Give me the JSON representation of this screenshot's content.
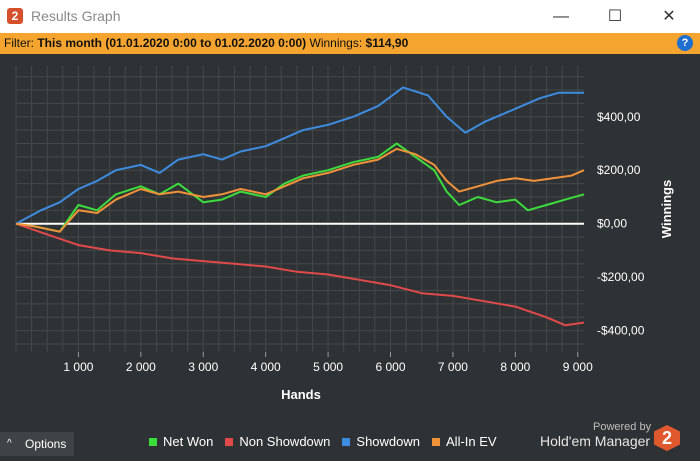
{
  "window": {
    "title": "Results Graph",
    "app_icon_text": "2",
    "controls": {
      "minimize": "—",
      "maximize": "☐",
      "close": "✕"
    }
  },
  "filter": {
    "label": "Filter:",
    "range": "This month (01.01.2020 0:00 to 01.02.2020 0:00)",
    "winnings_label": "Winnings:",
    "winnings_value": "$114,90",
    "help_icon_text": "?"
  },
  "options": {
    "label": "Options",
    "chevron": "^"
  },
  "brand": {
    "powered_by": "Powered by",
    "name": "Hold'em Manager",
    "logo_text": "2"
  },
  "chart_data": {
    "type": "line",
    "xlabel": "Hands",
    "ylabel": "Winnings",
    "xlim": [
      0,
      9100
    ],
    "ylim": [
      -480,
      590
    ],
    "x_ticks": [
      1000,
      2000,
      3000,
      4000,
      5000,
      6000,
      7000,
      8000,
      9000
    ],
    "x_tick_labels": [
      "1 000",
      "2 000",
      "3 000",
      "4 000",
      "5 000",
      "6 000",
      "7 000",
      "8 000",
      "9 000"
    ],
    "y_ticks": [
      400,
      200,
      0,
      -200,
      -400
    ],
    "y_tick_labels": [
      "$400,00",
      "$200,00",
      "$0,00",
      "-$200,00",
      "-$400,00"
    ],
    "grid": true,
    "legend_position": "bottom",
    "series": [
      {
        "name": "Net Won",
        "color": "#3ddc3d",
        "x": [
          0,
          300,
          700,
          1000,
          1300,
          1600,
          2000,
          2300,
          2600,
          3000,
          3300,
          3600,
          4000,
          4300,
          4600,
          5000,
          5400,
          5800,
          6100,
          6400,
          6700,
          6900,
          7100,
          7400,
          7700,
          8000,
          8200,
          8500,
          8800,
          9100
        ],
        "y": [
          0,
          -10,
          -30,
          70,
          50,
          110,
          140,
          110,
          150,
          80,
          90,
          120,
          100,
          150,
          180,
          200,
          230,
          250,
          300,
          250,
          200,
          120,
          70,
          100,
          80,
          90,
          50,
          70,
          90,
          110
        ]
      },
      {
        "name": "Non Showdown",
        "color": "#e04a4a",
        "x": [
          0,
          500,
          1000,
          1500,
          2000,
          2500,
          3000,
          3500,
          4000,
          4500,
          5000,
          5500,
          6000,
          6500,
          7000,
          7500,
          8000,
          8500,
          8800,
          9100
        ],
        "y": [
          0,
          -40,
          -80,
          -100,
          -110,
          -130,
          -140,
          -150,
          -160,
          -180,
          -190,
          -210,
          -230,
          -260,
          -270,
          -290,
          -310,
          -350,
          -380,
          -370
        ]
      },
      {
        "name": "Showdown",
        "color": "#3d8ce0",
        "x": [
          0,
          400,
          700,
          1000,
          1300,
          1600,
          2000,
          2300,
          2600,
          3000,
          3300,
          3600,
          4000,
          4300,
          4600,
          5000,
          5400,
          5800,
          6200,
          6600,
          6900,
          7200,
          7500,
          7800,
          8100,
          8400,
          8700,
          9100
        ],
        "y": [
          0,
          50,
          80,
          130,
          160,
          200,
          220,
          190,
          240,
          260,
          240,
          270,
          290,
          320,
          350,
          370,
          400,
          440,
          510,
          480,
          400,
          340,
          380,
          410,
          440,
          470,
          490,
          490
        ]
      },
      {
        "name": "All-In EV",
        "color": "#f0923a",
        "x": [
          0,
          300,
          700,
          1000,
          1300,
          1600,
          2000,
          2300,
          2600,
          3000,
          3300,
          3600,
          4000,
          4300,
          4600,
          5000,
          5400,
          5800,
          6100,
          6400,
          6700,
          6900,
          7100,
          7400,
          7700,
          8000,
          8300,
          8600,
          8900,
          9100
        ],
        "y": [
          0,
          -10,
          -30,
          50,
          40,
          90,
          130,
          110,
          120,
          100,
          110,
          130,
          110,
          140,
          170,
          190,
          220,
          240,
          280,
          260,
          220,
          160,
          120,
          140,
          160,
          170,
          160,
          170,
          180,
          200
        ]
      }
    ]
  }
}
